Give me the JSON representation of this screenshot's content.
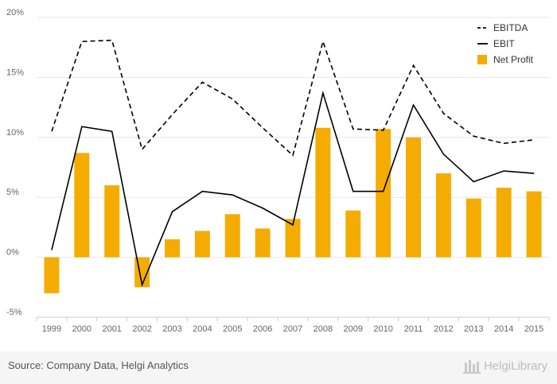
{
  "chart_data": {
    "type": "bar+line",
    "categories": [
      "1999",
      "2000",
      "2001",
      "2002",
      "2003",
      "2004",
      "2005",
      "2006",
      "2007",
      "2008",
      "2009",
      "2010",
      "2011",
      "2012",
      "2013",
      "2014",
      "2015"
    ],
    "series": [
      {
        "name": "EBITDA",
        "kind": "line",
        "style": "dashed",
        "color": "#000000",
        "values": [
          10.5,
          18.0,
          18.1,
          9.0,
          11.9,
          14.6,
          13.2,
          10.8,
          8.5,
          18.0,
          10.7,
          10.6,
          16.0,
          12.0,
          10.1,
          9.5,
          9.8
        ]
      },
      {
        "name": "EBIT",
        "kind": "line",
        "style": "solid",
        "color": "#000000",
        "values": [
          0.6,
          10.9,
          10.5,
          -2.3,
          3.8,
          5.5,
          5.2,
          4.1,
          2.7,
          13.7,
          5.5,
          5.5,
          12.7,
          8.6,
          6.3,
          7.2,
          7.0
        ]
      },
      {
        "name": "Net Profit",
        "kind": "bar",
        "color": "#f5ac00",
        "values": [
          -3.0,
          8.7,
          6.0,
          -2.5,
          1.5,
          2.2,
          3.6,
          2.4,
          3.2,
          10.8,
          3.9,
          10.7,
          10.0,
          7.0,
          4.9,
          5.8,
          5.5
        ]
      }
    ],
    "y_ticks": [
      "20%",
      "15%",
      "10%",
      "5%",
      "0%",
      "-5%"
    ],
    "ylim": [
      -5,
      20
    ],
    "grid": true,
    "legend": "top-right"
  },
  "footer": {
    "source": "Source: Company Data, Helgi Analytics",
    "brand": "HelgiLibrary"
  }
}
